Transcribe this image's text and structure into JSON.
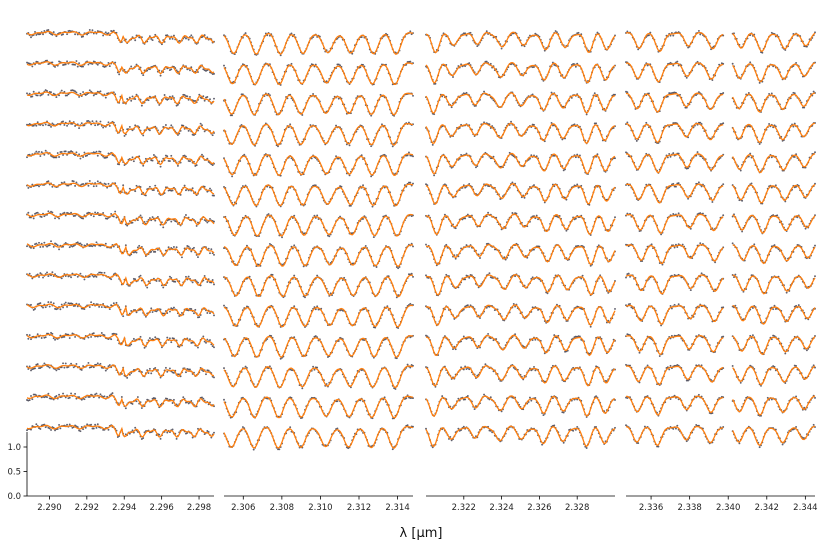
{
  "chart_data": {
    "type": "line",
    "title": "",
    "xlabel": "λ [μm]",
    "ylabel": "",
    "y_ticks": [
      "0.0",
      "0.5",
      "1.0"
    ],
    "ylim": [
      0,
      1.25
    ],
    "n_spectra": 14,
    "series": [
      {
        "role": "observed",
        "style": "scatter",
        "color": "#3a3a4a"
      },
      {
        "role": "model",
        "style": "line",
        "color": "#ff7f0e"
      }
    ],
    "panels": [
      {
        "id": 1,
        "xlim": [
          2.2888,
          2.2988
        ],
        "tick_values": [
          2.29,
          2.292,
          2.294,
          2.296,
          2.298
        ],
        "tick_labels": [
          "2.290",
          "2.292",
          "2.294",
          "2.296",
          "2.298"
        ]
      },
      {
        "id": 2,
        "xlim": [
          2.305,
          2.3148
        ],
        "tick_values": [
          2.306,
          2.308,
          2.31,
          2.312,
          2.314
        ],
        "tick_labels": [
          "2.306",
          "2.308",
          "2.310",
          "2.312",
          "2.314"
        ]
      },
      {
        "id": 3,
        "xlim": [
          2.32,
          2.33
        ],
        "tick_values": [
          2.322,
          2.324,
          2.326,
          2.328
        ],
        "tick_labels": [
          "2.322",
          "2.324",
          "2.326",
          "2.328"
        ]
      },
      {
        "id": 4,
        "xlim": [
          2.3347,
          2.3445
        ],
        "tick_values": [
          2.336,
          2.338,
          2.34,
          2.342,
          2.344
        ],
        "tick_labels": [
          "2.336",
          "2.338",
          "2.340",
          "2.342",
          "2.344"
        ]
      }
    ]
  }
}
